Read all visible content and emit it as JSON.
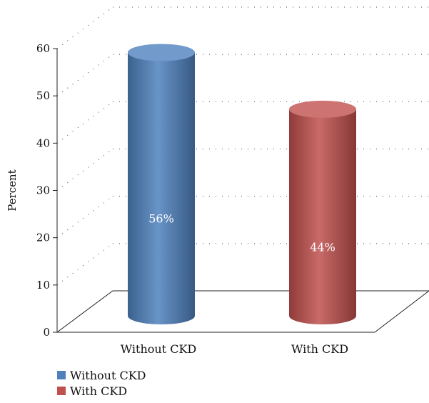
{
  "chart_data": {
    "type": "bar",
    "title": "",
    "xlabel": "",
    "ylabel": "Percent",
    "ylim": [
      0,
      60
    ],
    "yticks": [
      0,
      10,
      20,
      30,
      40,
      50,
      60
    ],
    "categories": [
      "Without CKD",
      "With CKD"
    ],
    "values": [
      56,
      44
    ],
    "data_labels": [
      "56%",
      "44%"
    ],
    "colors": [
      "#4f81bd",
      "#c0504d"
    ],
    "style": "3d-cylinder",
    "grid": "dotted horizontal",
    "legend": {
      "placement": "bottom-left",
      "entries": [
        "Without CKD",
        "With CKD"
      ]
    }
  }
}
